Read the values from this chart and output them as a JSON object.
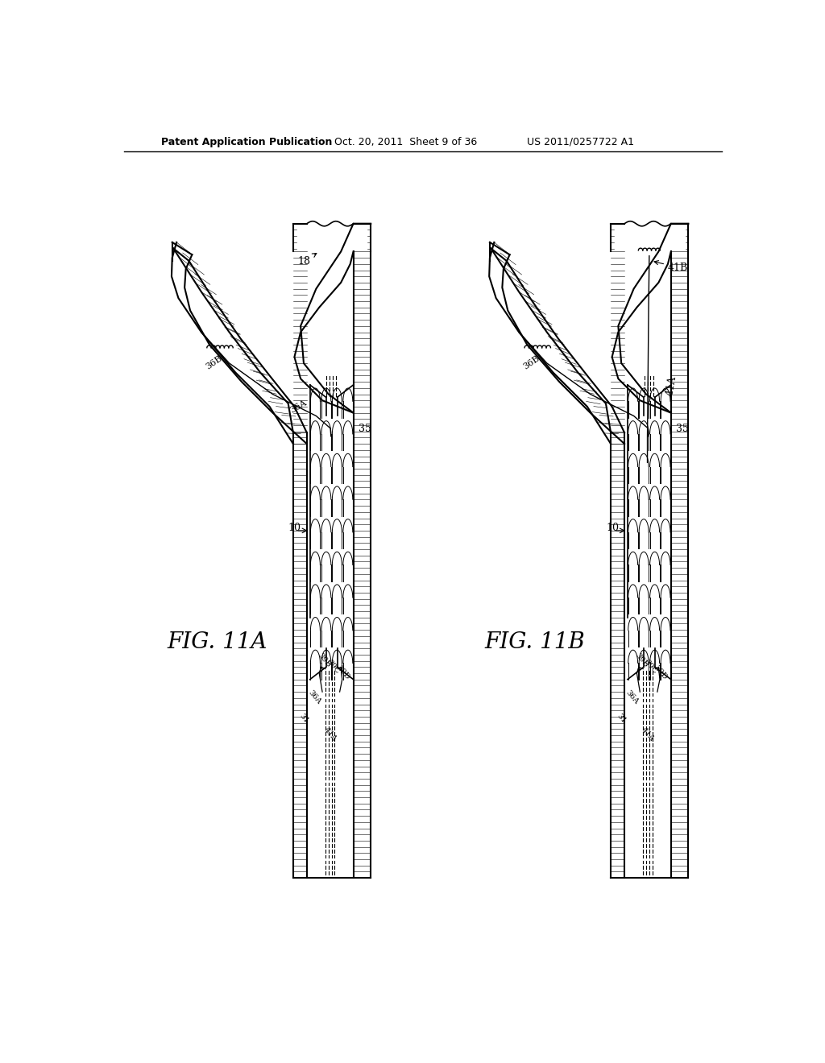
{
  "background_color": "#ffffff",
  "header_left": "Patent Application Publication",
  "header_mid": "Oct. 20, 2011  Sheet 9 of 36",
  "header_right": "US 2011/0257722 A1",
  "line_color": "#000000",
  "fig_11A_label": "FIG. 11A",
  "fig_11B_label": "FIG. 11B"
}
